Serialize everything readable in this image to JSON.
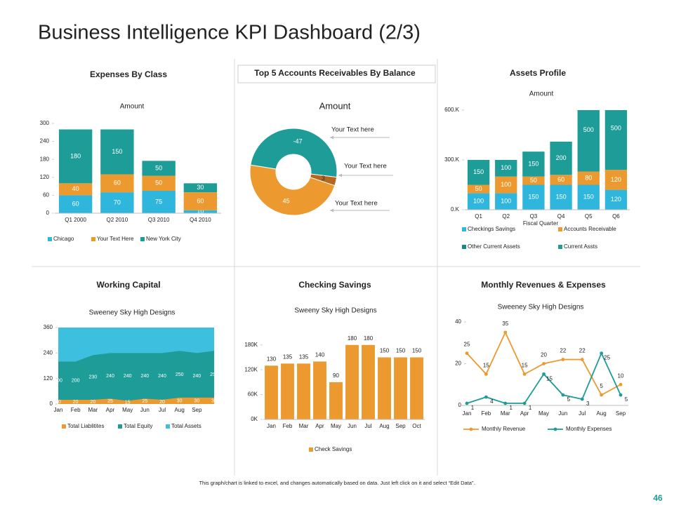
{
  "title": "Business Intelligence KPI Dashboard (2/3)",
  "footnote": "This graph/chart is linked to excel, and changes automatically based on data. Just left click on it and select “Edit Data”.",
  "page_number": "46",
  "chart_data": [
    {
      "type": "bar",
      "stacked": true,
      "title": "Expenses By Class",
      "subtitle": "Amount",
      "categories": [
        "Q1 2000",
        "Q2 2010",
        "Q3 2010",
        "Q4 2010"
      ],
      "series": [
        {
          "name": "Chicago",
          "color": "#2fb6dc",
          "values": [
            60,
            70,
            75,
            10
          ]
        },
        {
          "name": "Your Text Here",
          "color": "#ec9a2f",
          "values": [
            40,
            60,
            50,
            60
          ]
        },
        {
          "name": "New York City",
          "color": "#1d9c98",
          "values": [
            180,
            150,
            50,
            30
          ]
        }
      ],
      "ylim": [
        0,
        300
      ],
      "yticks": [
        0,
        60,
        120,
        180,
        240,
        300
      ],
      "grid": false
    },
    {
      "type": "donut",
      "title": "Top 5 Accounts Receivables By Balance",
      "subtitle": "Amount",
      "values": [
        -47,
        3,
        45
      ],
      "colors": [
        "#1d9c98",
        "#b8651f",
        "#ec9a2f"
      ],
      "annotations": [
        "Your Text here",
        "Your Text here",
        "Your Text here"
      ]
    },
    {
      "type": "bar",
      "stacked": true,
      "title": "Assets  Profile",
      "subtitle": "Amount",
      "xlabel": "Fiscal Quarter",
      "categories": [
        "Q1",
        "Q2",
        "Q3",
        "Q4",
        "Q5",
        "Q6"
      ],
      "series": [
        {
          "name": "Checkings Savings",
          "color": "#2fb6dc",
          "values": [
            100,
            100,
            150,
            150,
            150,
            120
          ]
        },
        {
          "name": "Accounts Receivable",
          "color": "#ec9a2f",
          "values": [
            50,
            100,
            50,
            60,
            80,
            120
          ]
        },
        {
          "name": "Other Current Assets",
          "color": "#168a87",
          "values": [
            0,
            0,
            0,
            0,
            0,
            0
          ]
        },
        {
          "name": "Current Assts",
          "color": "#1d9c98",
          "values": [
            150,
            100,
            150,
            200,
            500,
            500
          ]
        }
      ],
      "ylim": [
        0,
        600
      ],
      "yticks": [
        {
          "value": 0,
          "label": "0.K"
        },
        {
          "value": 300,
          "label": "300.K"
        },
        {
          "value": 600,
          "label": "600.K"
        }
      ],
      "grid": false
    },
    {
      "type": "area",
      "title": "Working Capital",
      "subtitle": "Sweeney Sky High Designs",
      "categories": [
        "Jan",
        "Feb",
        "Mar",
        "Apr",
        "May",
        "Jun",
        "Jul",
        "Aug",
        "Sep",
        null
      ],
      "series": [
        {
          "name": "Total Liablitites",
          "color": "#ec9a2f",
          "values": [
            20,
            20,
            20,
            25,
            15,
            25,
            20,
            30,
            30,
            30
          ]
        },
        {
          "name": "Total Equity",
          "color": "#1d9c98",
          "values": [
            200,
            200,
            230,
            240,
            240,
            240,
            240,
            250,
            240,
            250
          ]
        },
        {
          "name": "Total Assets",
          "color": "#3dbfe0",
          "values": [
            360,
            360,
            360,
            360,
            360,
            360,
            360,
            360,
            360,
            360
          ]
        }
      ],
      "ylim": [
        0,
        360
      ],
      "yticks": [
        0,
        120,
        240,
        360
      ],
      "grid": false
    },
    {
      "type": "bar",
      "stacked": false,
      "title": "Checking Savings",
      "subtitle": "Sweeny Sky High Designs",
      "categories": [
        "Jan",
        "Feb",
        "Mar",
        "Apr",
        "May",
        "Jun",
        "Jul",
        "Aug",
        "Sep",
        "Oct"
      ],
      "series": [
        {
          "name": "Check Savings",
          "color": "#ec9a2f",
          "values": [
            130,
            135,
            135,
            140,
            90,
            180,
            180,
            150,
            150,
            150
          ]
        }
      ],
      "ylim": [
        0,
        200
      ],
      "yticks": [
        {
          "value": 0,
          "label": "0K"
        },
        {
          "value": 60,
          "label": "60K"
        },
        {
          "value": 120,
          "label": "120K"
        },
        {
          "value": 180,
          "label": "180K"
        }
      ],
      "grid": false
    },
    {
      "type": "line",
      "title": "Monthly Revenues & Expenses",
      "subtitle": "Sweeney Sky High Designs",
      "categories": [
        "Jan",
        "Feb",
        "Mar",
        "Apr",
        "May",
        "Jun",
        "Jul",
        "Aug",
        "Sep"
      ],
      "series": [
        {
          "name": "Monthly Revenue",
          "color": "#ec9a2f",
          "values": [
            25,
            15,
            35,
            15,
            20,
            22,
            22,
            5,
            10
          ]
        },
        {
          "name": "Monthly Expenses",
          "color": "#1d9c98",
          "values": [
            1,
            4,
            1,
            1,
            15,
            5,
            3,
            25,
            5
          ]
        }
      ],
      "ylim": [
        0,
        40
      ],
      "yticks": [
        0,
        20,
        40
      ],
      "grid": false
    }
  ]
}
